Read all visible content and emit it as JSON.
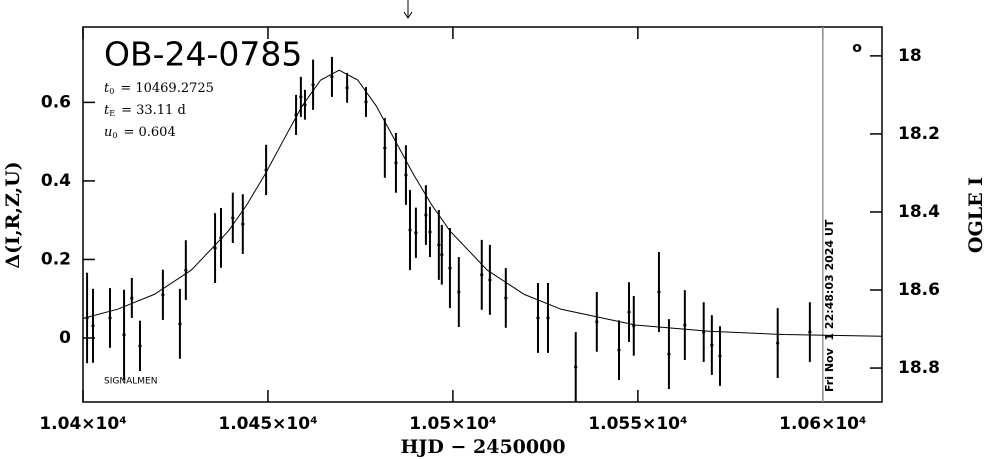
{
  "chart_data": {
    "type": "scatter",
    "title": "OB-24-0785",
    "parameters": [
      {
        "symbol": "t",
        "subscript": "0",
        "text": "= 10469.2725"
      },
      {
        "symbol": "t",
        "subscript": "E",
        "text": "= 33.11 d"
      },
      {
        "symbol": "u",
        "subscript": "0",
        "text": "= 0.604"
      }
    ],
    "annotation": "SIGNALMEN",
    "timestamp": "Fri Nov  1 22:48:03 2024 UT",
    "marker_label": "o",
    "x_label": "HJD − 2450000",
    "y_label": "Δ(I,R,Z,U)",
    "y2_label": "OGLE I",
    "xlim": [
      10400,
      10616
    ],
    "ylim": [
      -0.163,
      0.792
    ],
    "y2lim": [
      18.887,
      17.926
    ],
    "xticks": [
      {
        "value": 10400,
        "label": "1.04×10⁴"
      },
      {
        "value": 10450,
        "label": "1.045×10⁴"
      },
      {
        "value": 10500,
        "label": "1.05×10⁴"
      },
      {
        "value": 10550,
        "label": "1.055×10⁴"
      },
      {
        "value": 10600,
        "label": "1.06×10⁴"
      }
    ],
    "yticks": [
      0,
      0.2,
      0.4,
      0.6
    ],
    "y2ticks": [
      18,
      18.2,
      18.4,
      18.6,
      18.8
    ],
    "now_line": 10600,
    "now_line_color": "#999999",
    "series": [
      {
        "color": "#000000",
        "x": [
          10401.1,
          10402.7,
          10407.3,
          10411.1,
          10413.2,
          10415.4,
          10421.6,
          10426.2,
          10427.8,
          10435.7,
          10437.3,
          10440.5,
          10443.2,
          10449.5,
          10457.6,
          10458.9,
          10460.0,
          10462.2,
          10467.3,
          10471.4,
          10476.5,
          10481.6,
          10484.6,
          10487.3,
          10488.4,
          10490.0,
          10492.7,
          10493.8,
          10496.2,
          10497.0,
          10499.2,
          10501.6,
          10507.8,
          10510.0,
          10514.3,
          10523.0,
          10525.7,
          10533.2,
          10538.9,
          10544.9,
          10547.6,
          10548.9,
          10555.7,
          10558.4,
          10562.7,
          10567.8,
          10570.0,
          10572.2,
          10587.8,
          10596.5
        ],
        "values": [
          0.051,
          0.031,
          0.051,
          0.008,
          0.102,
          -0.02,
          0.11,
          0.036,
          0.173,
          0.229,
          0.255,
          0.306,
          0.29,
          0.428,
          0.568,
          0.614,
          0.594,
          0.645,
          0.665,
          0.637,
          0.601,
          0.484,
          0.446,
          0.415,
          0.275,
          0.268,
          0.313,
          0.27,
          0.237,
          0.212,
          0.178,
          0.117,
          0.161,
          0.148,
          0.102,
          0.051,
          0.051,
          -0.074,
          0.041,
          -0.031,
          0.066,
          0.031,
          0.117,
          -0.041,
          0.033,
          0.015,
          -0.018,
          -0.046,
          -0.013,
          0.015
        ],
        "errors": [
          0.115,
          0.094,
          0.076,
          0.115,
          0.051,
          0.064,
          0.064,
          0.089,
          0.076,
          0.089,
          0.076,
          0.064,
          0.076,
          0.064,
          0.051,
          0.051,
          0.038,
          0.064,
          0.051,
          0.038,
          0.038,
          0.076,
          0.076,
          0.076,
          0.102,
          0.064,
          0.076,
          0.064,
          0.089,
          0.076,
          0.102,
          0.089,
          0.089,
          0.089,
          0.076,
          0.089,
          0.089,
          0.089,
          0.076,
          0.076,
          0.076,
          0.076,
          0.102,
          0.089,
          0.089,
          0.076,
          0.076,
          0.076,
          0.089,
          0.076
        ]
      }
    ],
    "model": {
      "color": "#000000",
      "x": [
        10400,
        10409.27,
        10419.27,
        10429.27,
        10439.27,
        10444.27,
        10449.27,
        10454.27,
        10459.27,
        10464.27,
        10469.27,
        10474.27,
        10479.27,
        10484.27,
        10489.27,
        10494.27,
        10499.27,
        10509.27,
        10519.27,
        10529.27,
        10549.27,
        10569.27,
        10589.27,
        10616
      ],
      "values": [
        0.05,
        0.073,
        0.111,
        0.173,
        0.272,
        0.339,
        0.418,
        0.505,
        0.591,
        0.657,
        0.682,
        0.657,
        0.591,
        0.505,
        0.418,
        0.339,
        0.272,
        0.173,
        0.111,
        0.073,
        0.033,
        0.017,
        0.009,
        0.0045
      ]
    }
  }
}
